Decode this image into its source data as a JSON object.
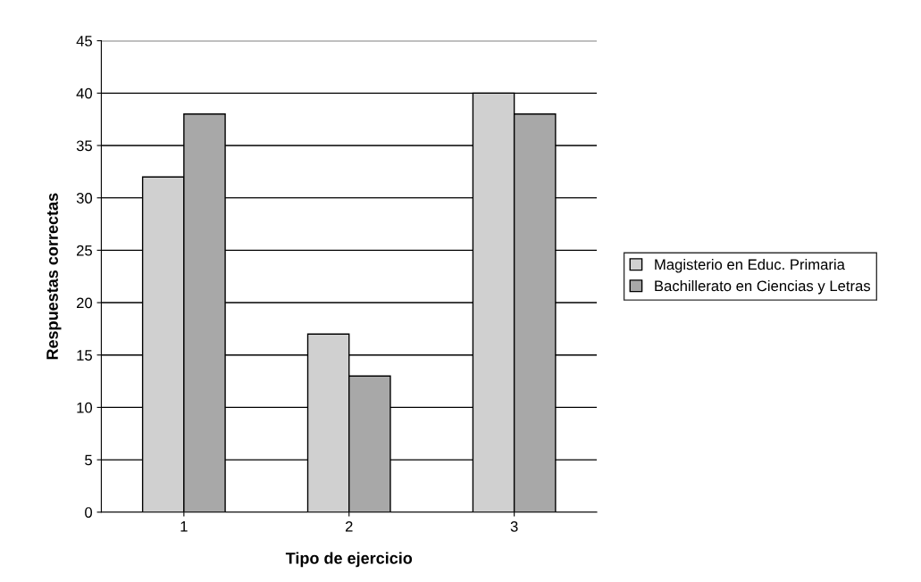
{
  "chart_data": {
    "type": "bar",
    "xlabel": "Tipo de ejercicio",
    "ylabel": "Respuestas correctas",
    "categories": [
      "1",
      "2",
      "3"
    ],
    "series": [
      {
        "name": "Magisterio en Educ. Primaria",
        "color": "#d0d0d0",
        "values": [
          32,
          17,
          40
        ]
      },
      {
        "name": "Bachillerato en Ciencias y Letras",
        "color": "#a8a8a8",
        "values": [
          38,
          13,
          38
        ]
      }
    ],
    "ylim": [
      0,
      45
    ],
    "yticks": [
      0,
      5,
      10,
      15,
      20,
      25,
      30,
      35,
      40,
      45
    ],
    "grid": "y",
    "legend": "right"
  }
}
